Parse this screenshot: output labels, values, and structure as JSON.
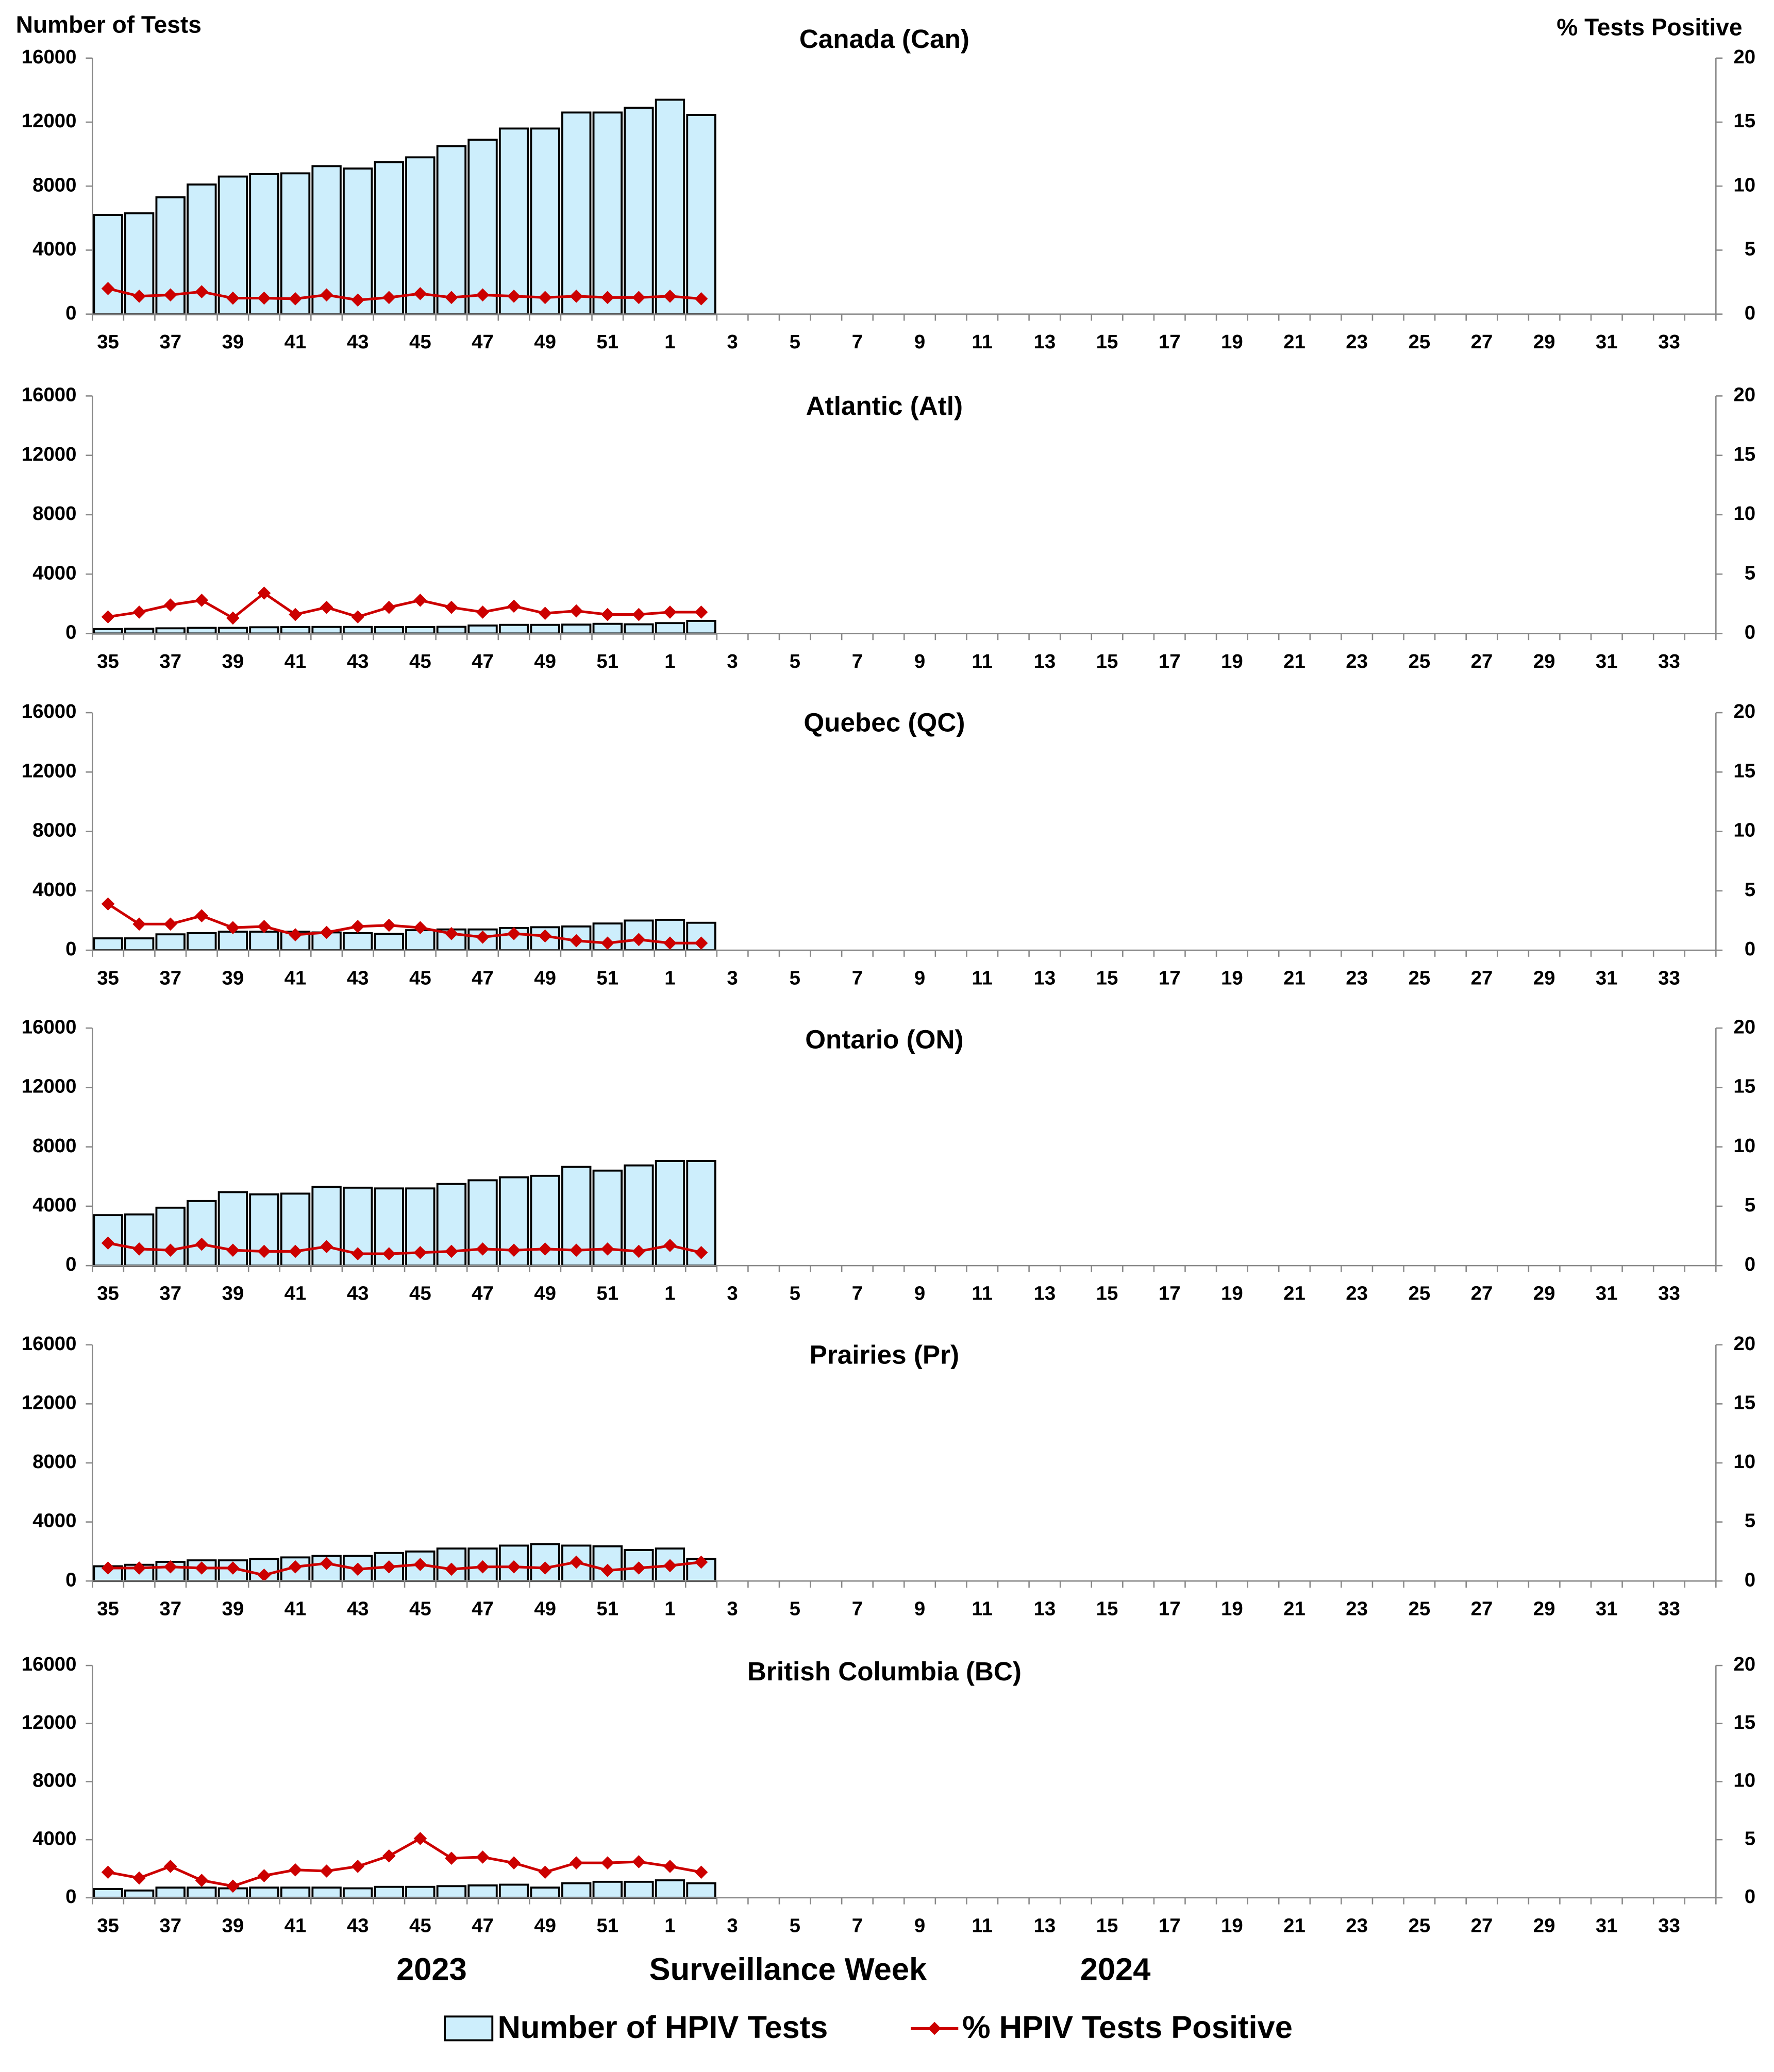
{
  "chart_data": [
    {
      "type": "bar-line",
      "title": "Canada (Can)",
      "y_label": "Number of Tests",
      "y2_label": "% Tests Positive",
      "legend": "bottom",
      "categories": [
        "35",
        null,
        "37",
        null,
        "39",
        null,
        "41",
        null,
        "43",
        null,
        "45",
        null,
        "47",
        null,
        "49",
        null,
        "51",
        null,
        "1",
        null,
        "3",
        null,
        "5",
        null,
        "7",
        null,
        "9",
        null,
        "11",
        null,
        "13",
        null,
        "15",
        null,
        "17",
        null,
        "19",
        null,
        "21",
        null,
        "23",
        null,
        "25",
        null,
        "27",
        null,
        "29",
        null,
        "31",
        null,
        "33",
        null
      ],
      "ylim": [
        0,
        16000
      ],
      "yticks": [
        0,
        4000,
        8000,
        12000,
        16000
      ],
      "y2lim": [
        0,
        20
      ],
      "y2ticks": [
        0,
        5,
        10,
        15,
        20
      ],
      "series": [
        {
          "name": "Number of HPIV Tests",
          "color": "#cdeefc",
          "values": [
            6200,
            6300,
            7300,
            8100,
            8600,
            8750,
            8800,
            9250,
            9100,
            9500,
            9800,
            10500,
            10900,
            11600,
            11600,
            12600,
            12600,
            12900,
            13400,
            12450,
            null,
            null,
            null,
            null,
            null,
            null,
            null,
            null,
            null,
            null,
            null,
            null,
            null,
            null,
            null,
            null,
            null,
            null,
            null,
            null,
            null,
            null,
            null,
            null,
            null,
            null,
            null,
            null,
            null,
            null,
            null,
            null
          ]
        },
        {
          "name": "% HPIV Tests Positive",
          "color": "#cc0000",
          "axis": "y2",
          "values": [
            2.0,
            1.4,
            1.5,
            1.75,
            1.25,
            1.25,
            1.2,
            1.5,
            1.1,
            1.3,
            1.6,
            1.3,
            1.5,
            1.4,
            1.3,
            1.4,
            1.3,
            1.3,
            1.4,
            1.2,
            null,
            null,
            null,
            null,
            null,
            null,
            null,
            null,
            null,
            null,
            null,
            null,
            null,
            null,
            null,
            null,
            null,
            null,
            null,
            null,
            null,
            null,
            null,
            null,
            null,
            null,
            null,
            null,
            null,
            null,
            null,
            null
          ]
        }
      ]
    },
    {
      "type": "bar-line",
      "title": "Atlantic (Atl)",
      "categories": [
        "35",
        null,
        "37",
        null,
        "39",
        null,
        "41",
        null,
        "43",
        null,
        "45",
        null,
        "47",
        null,
        "49",
        null,
        "51",
        null,
        "1",
        null,
        "3",
        null,
        "5",
        null,
        "7",
        null,
        "9",
        null,
        "11",
        null,
        "13",
        null,
        "15",
        null,
        "17",
        null,
        "19",
        null,
        "21",
        null,
        "23",
        null,
        "25",
        null,
        "27",
        null,
        "29",
        null,
        "31",
        null,
        "33",
        null
      ],
      "ylim": [
        0,
        16000
      ],
      "yticks": [
        0,
        4000,
        8000,
        12000,
        16000
      ],
      "y2lim": [
        0,
        20
      ],
      "y2ticks": [
        0,
        5,
        10,
        15,
        20
      ],
      "series": [
        {
          "name": "Number of HPIV Tests",
          "color": "#cdeefc",
          "values": [
            300,
            320,
            350,
            380,
            380,
            420,
            430,
            440,
            440,
            430,
            430,
            450,
            540,
            580,
            580,
            600,
            650,
            620,
            700,
            850,
            null,
            null,
            null,
            null,
            null,
            null,
            null,
            null,
            null,
            null,
            null,
            null,
            null,
            null,
            null,
            null,
            null,
            null,
            null,
            null,
            null,
            null,
            null,
            null,
            null,
            null,
            null,
            null,
            null,
            null,
            null,
            null
          ]
        },
        {
          "name": "% HPIV Tests Positive",
          "color": "#cc0000",
          "axis": "y2",
          "values": [
            1.4,
            1.8,
            2.4,
            2.8,
            1.3,
            3.4,
            1.6,
            2.2,
            1.4,
            2.2,
            2.8,
            2.2,
            1.8,
            2.3,
            1.7,
            1.9,
            1.6,
            1.6,
            1.8,
            1.8,
            null,
            null,
            null,
            null,
            null,
            null,
            null,
            null,
            null,
            null,
            null,
            null,
            null,
            null,
            null,
            null,
            null,
            null,
            null,
            null,
            null,
            null,
            null,
            null,
            null,
            null,
            null,
            null,
            null,
            null,
            null,
            null
          ]
        }
      ]
    },
    {
      "type": "bar-line",
      "title": "Quebec (QC)",
      "categories": [
        "35",
        null,
        "37",
        null,
        "39",
        null,
        "41",
        null,
        "43",
        null,
        "45",
        null,
        "47",
        null,
        "49",
        null,
        "51",
        null,
        "1",
        null,
        "3",
        null,
        "5",
        null,
        "7",
        null,
        "9",
        null,
        "11",
        null,
        "13",
        null,
        "15",
        null,
        "17",
        null,
        "19",
        null,
        "21",
        null,
        "23",
        null,
        "25",
        null,
        "27",
        null,
        "29",
        null,
        "31",
        null,
        "33",
        null
      ],
      "ylim": [
        0,
        16000
      ],
      "yticks": [
        0,
        4000,
        8000,
        12000,
        16000
      ],
      "y2lim": [
        0,
        20
      ],
      "y2ticks": [
        0,
        5,
        10,
        15,
        20
      ],
      "series": [
        {
          "name": "Number of HPIV Tests",
          "color": "#cdeefc",
          "values": [
            800,
            800,
            1070,
            1150,
            1250,
            1250,
            1250,
            1200,
            1150,
            1100,
            1350,
            1400,
            1400,
            1500,
            1550,
            1600,
            1800,
            2000,
            2050,
            1850,
            null,
            null,
            null,
            null,
            null,
            null,
            null,
            null,
            null,
            null,
            null,
            null,
            null,
            null,
            null,
            null,
            null,
            null,
            null,
            null,
            null,
            null,
            null,
            null,
            null,
            null,
            null,
            null,
            null,
            null,
            null,
            null
          ]
        },
        {
          "name": "% HPIV Tests Positive",
          "color": "#cc0000",
          "axis": "y2",
          "values": [
            3.9,
            2.2,
            2.2,
            2.9,
            1.9,
            2.0,
            1.3,
            1.5,
            2.0,
            2.1,
            1.9,
            1.4,
            1.1,
            1.4,
            1.2,
            0.8,
            0.6,
            0.9,
            0.6,
            0.6,
            null,
            null,
            null,
            null,
            null,
            null,
            null,
            null,
            null,
            null,
            null,
            null,
            null,
            null,
            null,
            null,
            null,
            null,
            null,
            null,
            null,
            null,
            null,
            null,
            null,
            null,
            null,
            null,
            null,
            null,
            null,
            null
          ]
        }
      ]
    },
    {
      "type": "bar-line",
      "title": "Ontario (ON)",
      "categories": [
        "35",
        null,
        "37",
        null,
        "39",
        null,
        "41",
        null,
        "43",
        null,
        "45",
        null,
        "47",
        null,
        "49",
        null,
        "51",
        null,
        "1",
        null,
        "3",
        null,
        "5",
        null,
        "7",
        null,
        "9",
        null,
        "11",
        null,
        "13",
        null,
        "15",
        null,
        "17",
        null,
        "19",
        null,
        "21",
        null,
        "23",
        null,
        "25",
        null,
        "27",
        null,
        "29",
        null,
        "31",
        null,
        "33",
        null
      ],
      "ylim": [
        0,
        16000
      ],
      "yticks": [
        0,
        4000,
        8000,
        12000,
        16000
      ],
      "y2lim": [
        0,
        20
      ],
      "y2ticks": [
        0,
        5,
        10,
        15,
        20
      ],
      "series": [
        {
          "name": "Number of HPIV Tests",
          "color": "#cdeefc",
          "values": [
            3400,
            3450,
            3900,
            4350,
            4950,
            4800,
            4850,
            5300,
            5250,
            5200,
            5200,
            5500,
            5750,
            5950,
            6050,
            6650,
            6400,
            6750,
            7050,
            7050,
            null,
            null,
            null,
            null,
            null,
            null,
            null,
            null,
            null,
            null,
            null,
            null,
            null,
            null,
            null,
            null,
            null,
            null,
            null,
            null,
            null,
            null,
            null,
            null,
            null,
            null,
            null,
            null,
            null,
            null,
            null,
            null
          ]
        },
        {
          "name": "% HPIV Tests Positive",
          "color": "#cc0000",
          "axis": "y2",
          "values": [
            1.9,
            1.4,
            1.3,
            1.8,
            1.3,
            1.2,
            1.2,
            1.6,
            1.0,
            1.0,
            1.1,
            1.2,
            1.4,
            1.3,
            1.4,
            1.3,
            1.4,
            1.2,
            1.7,
            1.1,
            null,
            null,
            null,
            null,
            null,
            null,
            null,
            null,
            null,
            null,
            null,
            null,
            null,
            null,
            null,
            null,
            null,
            null,
            null,
            null,
            null,
            null,
            null,
            null,
            null,
            null,
            null,
            null,
            null,
            null,
            null,
            null
          ]
        }
      ]
    },
    {
      "type": "bar-line",
      "title": "Prairies (Pr)",
      "categories": [
        "35",
        null,
        "37",
        null,
        "39",
        null,
        "41",
        null,
        "43",
        null,
        "45",
        null,
        "47",
        null,
        "49",
        null,
        "51",
        null,
        "1",
        null,
        "3",
        null,
        "5",
        null,
        "7",
        null,
        "9",
        null,
        "11",
        null,
        "13",
        null,
        "15",
        null,
        "17",
        null,
        "19",
        null,
        "21",
        null,
        "23",
        null,
        "25",
        null,
        "27",
        null,
        "29",
        null,
        "31",
        null,
        "33",
        null
      ],
      "ylim": [
        0,
        16000
      ],
      "yticks": [
        0,
        4000,
        8000,
        12000,
        16000
      ],
      "y2lim": [
        0,
        20
      ],
      "y2ticks": [
        0,
        5,
        10,
        15,
        20
      ],
      "series": [
        {
          "name": "Number of HPIV Tests",
          "color": "#cdeefc",
          "values": [
            1000,
            1100,
            1300,
            1400,
            1400,
            1500,
            1600,
            1700,
            1700,
            1900,
            2000,
            2200,
            2200,
            2400,
            2500,
            2400,
            2350,
            2100,
            2200,
            1500,
            null,
            null,
            null,
            null,
            null,
            null,
            null,
            null,
            null,
            null,
            null,
            null,
            null,
            null,
            null,
            null,
            null,
            null,
            null,
            null,
            null,
            null,
            null,
            null,
            null,
            null,
            null,
            null,
            null,
            null,
            null,
            null
          ]
        },
        {
          "name": "% HPIV Tests Positive",
          "color": "#cc0000",
          "axis": "y2",
          "values": [
            1.1,
            1.1,
            1.2,
            1.1,
            1.1,
            0.5,
            1.2,
            1.5,
            1.0,
            1.2,
            1.4,
            1.0,
            1.2,
            1.2,
            1.1,
            1.6,
            0.9,
            1.1,
            1.3,
            1.6,
            null,
            null,
            null,
            null,
            null,
            null,
            null,
            null,
            null,
            null,
            null,
            null,
            null,
            null,
            null,
            null,
            null,
            null,
            null,
            null,
            null,
            null,
            null,
            null,
            null,
            null,
            null,
            null,
            null,
            null,
            null,
            null
          ]
        }
      ]
    },
    {
      "type": "bar-line",
      "title": "British Columbia (BC)",
      "x_label": "Surveillance Week",
      "annotations": [
        "2023",
        "2024"
      ],
      "categories": [
        "35",
        null,
        "37",
        null,
        "39",
        null,
        "41",
        null,
        "43",
        null,
        "45",
        null,
        "47",
        null,
        "49",
        null,
        "51",
        null,
        "1",
        null,
        "3",
        null,
        "5",
        null,
        "7",
        null,
        "9",
        null,
        "11",
        null,
        "13",
        null,
        "15",
        null,
        "17",
        null,
        "19",
        null,
        "21",
        null,
        "23",
        null,
        "25",
        null,
        "27",
        null,
        "29",
        null,
        "31",
        null,
        "33",
        null
      ],
      "ylim": [
        0,
        16000
      ],
      "yticks": [
        0,
        4000,
        8000,
        12000,
        16000
      ],
      "y2lim": [
        0,
        20
      ],
      "y2ticks": [
        0,
        5,
        10,
        15,
        20
      ],
      "series": [
        {
          "name": "Number of HPIV Tests",
          "color": "#cdeefc",
          "values": [
            600,
            500,
            700,
            700,
            650,
            700,
            700,
            700,
            650,
            750,
            750,
            800,
            850,
            900,
            700,
            1000,
            1100,
            1100,
            1200,
            1000,
            null,
            null,
            null,
            null,
            null,
            null,
            null,
            null,
            null,
            null,
            null,
            null,
            null,
            null,
            null,
            null,
            null,
            null,
            null,
            null,
            null,
            null,
            null,
            null,
            null,
            null,
            null,
            null,
            null,
            null,
            null,
            null
          ]
        },
        {
          "name": "% HPIV Tests Positive",
          "color": "#cc0000",
          "axis": "y2",
          "values": [
            2.2,
            1.7,
            2.7,
            1.5,
            1.0,
            1.9,
            2.4,
            2.3,
            2.7,
            3.6,
            5.1,
            3.4,
            3.5,
            3.0,
            2.2,
            3.0,
            3.0,
            3.1,
            2.7,
            2.2,
            null,
            null,
            null,
            null,
            null,
            null,
            null,
            null,
            null,
            null,
            null,
            null,
            null,
            null,
            null,
            null,
            null,
            null,
            null,
            null,
            null,
            null,
            null,
            null,
            null,
            null,
            null,
            null,
            null,
            null,
            null,
            null
          ]
        }
      ]
    }
  ]
}
